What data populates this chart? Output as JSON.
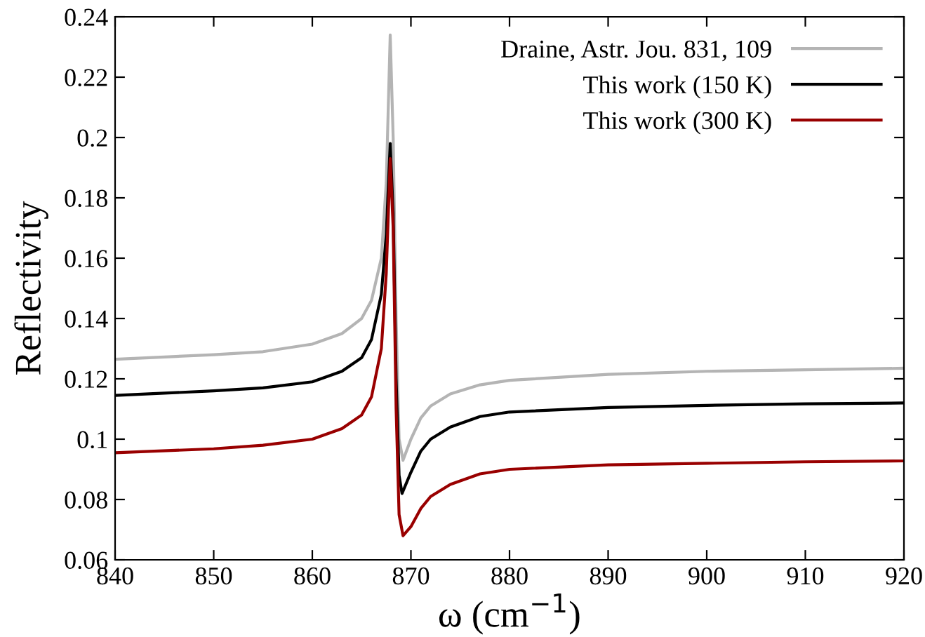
{
  "chart_data": {
    "type": "line",
    "xlabel": "ω (cm$^{−1}$)",
    "ylabel": "Reflectivity",
    "xlim": [
      840,
      920
    ],
    "xticks": [
      840,
      850,
      860,
      870,
      880,
      890,
      900,
      910,
      920
    ],
    "ylim": [
      0.06,
      0.24
    ],
    "yticks": [
      0.06,
      0.08,
      0.1,
      0.12,
      0.14,
      0.16,
      0.18,
      0.2,
      0.22,
      0.24
    ],
    "grid": false,
    "legend": "top right",
    "line_style": "solid",
    "marker": "none",
    "series": [
      {
        "name": "Draine, Astr. Jou. 831, 109",
        "color": "#b4b4b4",
        "x": [
          840,
          850,
          855,
          860,
          863,
          865,
          866,
          867,
          867.5,
          867.9,
          868.2,
          868.5,
          868.8,
          869.2,
          870,
          871,
          872,
          874,
          877,
          880,
          890,
          900,
          910,
          920
        ],
        "values": [
          0.1265,
          0.128,
          0.129,
          0.1315,
          0.135,
          0.14,
          0.146,
          0.16,
          0.185,
          0.234,
          0.2,
          0.14,
          0.1,
          0.093,
          0.1,
          0.107,
          0.111,
          0.115,
          0.118,
          0.1195,
          0.1215,
          0.1225,
          0.123,
          0.1235
        ]
      },
      {
        "name": "This work (150 K)",
        "color": "#000000",
        "x": [
          840,
          850,
          855,
          860,
          863,
          865,
          866,
          867,
          867.5,
          867.9,
          868.2,
          868.5,
          868.8,
          869.1,
          870,
          871,
          872,
          874,
          877,
          880,
          890,
          900,
          910,
          920
        ],
        "values": [
          0.1145,
          0.116,
          0.117,
          0.119,
          0.1225,
          0.127,
          0.133,
          0.148,
          0.168,
          0.198,
          0.175,
          0.12,
          0.088,
          0.082,
          0.089,
          0.096,
          0.1,
          0.104,
          0.1075,
          0.109,
          0.1105,
          0.1112,
          0.1117,
          0.112
        ]
      },
      {
        "name": "This work (300 K)",
        "color": "#990000",
        "x": [
          840,
          850,
          855,
          860,
          863,
          865,
          866,
          867,
          867.5,
          867.9,
          868.2,
          868.5,
          868.8,
          869.2,
          870,
          871,
          872,
          874,
          877,
          880,
          890,
          900,
          910,
          920
        ],
        "values": [
          0.0955,
          0.0968,
          0.098,
          0.1,
          0.1035,
          0.108,
          0.114,
          0.13,
          0.155,
          0.193,
          0.17,
          0.11,
          0.075,
          0.068,
          0.071,
          0.077,
          0.081,
          0.085,
          0.0885,
          0.09,
          0.0915,
          0.092,
          0.0925,
          0.0928
        ]
      }
    ]
  }
}
